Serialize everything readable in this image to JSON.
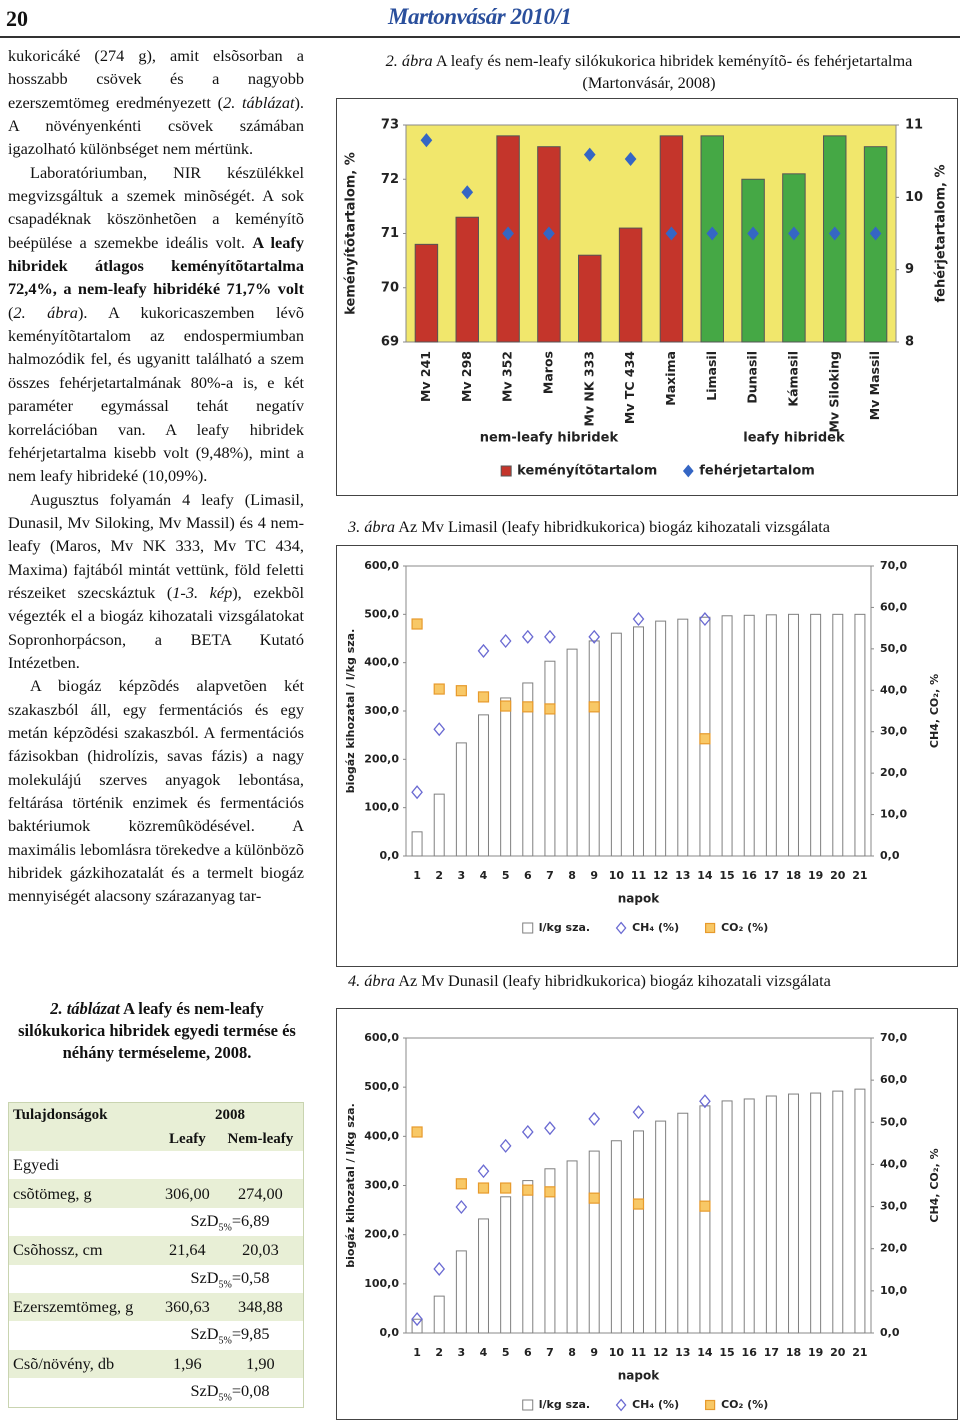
{
  "header": {
    "page_number": "20",
    "journal": "Martonvásár 2010/1"
  },
  "body": {
    "paragraphs": [
      [
        "kukoricáké (274 g), amit elsõsorban a hosszabb csövek és a nagyobb ezerszemtömeg eredményezett (",
        "2. táblázat",
        "). A növényenkénti csövek számában igazolható különbséget nem mértünk."
      ],
      [
        "Laboratóriumban, NIR készülékkel megvizsgáltuk a szemek minõségét. A sok csapadéknak köszönhetõen a keményítõ beépülése a szemekbe ideális volt. ",
        "A leafy hibridek átlagos keményítõtartalma 72,4%, a nem-leafy hibridéké 71,7% volt",
        " (",
        "2. ábra",
        "). A kukoricaszemben lévõ keményítõtartalom az endospermiumban halmozódik fel, és ugyanitt található a szem összes fehérjetartalmának 80%-a is, e két paraméter egymással tehát negatív korrelációban van. A leafy hibridek fehérjetartalma kisebb volt (9,48%), mint a nem leafy hibrideké (10,09%)."
      ],
      [
        "Augusztus folyamán 4 leafy (Limasil, Dunasil, Mv Siloking, Mv Massil) és 4 nem-leafy (Maros, Mv NK 333, Mv TC 434, Maxima) fajtából mintát vettünk, föld feletti részeiket szecskáztuk (",
        "1-3. kép",
        "), ezekbõl végezték el a biogáz kihozatali vizsgálatokat Sopronhorpácson, a BETA Kutató Intézetben."
      ],
      [
        "A biogáz képzõdés alapvetõen két szakaszból áll, egy fermentációs és egy metán képzõdési szakaszból. A fermentációs fázisokban (hidrolízis, savas fázis) a nagy molekulájú szerves anyagok lebontása, feltárása történik enzimek és fermentációs baktériumok közremûködésével. A maximális lebomlásra törekedve a különbözõ hibridek gázkihozatalát és a termelt biogáz mennyiségét alacsony szárazanyag tar-"
      ]
    ]
  },
  "table": {
    "caption": [
      "2. táblázat",
      " A leafy és nem-leafy silókukorica hibridek egyedi termése és néhány terméseleme, 2008."
    ],
    "header": [
      "Tulajdonságok",
      "2008"
    ],
    "subheader": [
      "Leafy",
      "Nem-leafy"
    ],
    "rows": [
      [
        "Egyedi"
      ],
      [
        "csõtömeg, g",
        "306,00",
        "274,00"
      ],
      [
        [
          "SzD",
          "5%",
          "=6,89"
        ]
      ],
      [
        "Csõhossz, cm",
        "21,64",
        "20,03"
      ],
      [
        [
          "SzD",
          "5%",
          "=0,58"
        ]
      ],
      [
        "Ezerszemtömeg, g",
        "360,63",
        "348,88"
      ],
      [
        [
          "SzD",
          "5%",
          "=9,85"
        ]
      ],
      [
        "Csõ/növény, db",
        "1,96",
        "1,90"
      ],
      [
        [
          "SzD",
          "5%",
          "=0,08"
        ]
      ]
    ]
  },
  "chart_data": [
    {
      "type": "combo",
      "caption_label": "2. ábra",
      "title": "A leafy és nem-leafy silókukorica hibridek keményítõ- és fehérjetartalma (Martonvásár, 2008)",
      "categories": [
        "Mv 241",
        "Mv 298",
        "Mv 352",
        "Maros",
        "Mv NK 333",
        "Mv TC 434",
        "Maxima",
        "Limasil",
        "Dunasil",
        "Kámasil",
        "Mv Siloking",
        "Mv Massil"
      ],
      "groups": [
        {
          "name": "nem-leafy hibridek",
          "categories": [
            "Mv 241",
            "Mv 298",
            "Mv 352",
            "Maros",
            "Mv NK 333",
            "Mv TC 434",
            "Maxima"
          ]
        },
        {
          "name": "leafy hibridek",
          "categories": [
            "Limasil",
            "Dunasil",
            "Kámasil",
            "Mv Siloking",
            "Mv Massil"
          ]
        }
      ],
      "ylabel": "keményítõtartalom, %",
      "y2label": "fehérjetartalom, %",
      "ylim": [
        69,
        73
      ],
      "yticks": [
        69,
        70,
        71,
        72,
        73
      ],
      "y2lim": [
        8,
        11
      ],
      "y2ticks": [
        8,
        9,
        10,
        11
      ],
      "background": "#f1e76c",
      "grid": false,
      "series": [
        {
          "name": "keményítõtartalom",
          "kind": "bar",
          "color": "#c4352b",
          "colors": [
            "#c4352b",
            "#c4352b",
            "#c4352b",
            "#c4352b",
            "#c4352b",
            "#c4352b",
            "#c4352b",
            "#45a845",
            "#45a845",
            "#45a845",
            "#45a845",
            "#45a845"
          ],
          "values": [
            70.8,
            71.3,
            72.8,
            72.6,
            70.6,
            71.1,
            72.8,
            72.8,
            72.0,
            72.1,
            72.8,
            72.6
          ]
        },
        {
          "name": "fehérjetartalom",
          "kind": "scatter",
          "marker": "diamond",
          "color": "#3566c4",
          "fill": "#3566c4",
          "axis": "y2",
          "values": [
            10.79,
            10.07,
            9.5,
            9.5,
            10.59,
            10.53,
            9.5,
            9.5,
            9.5,
            9.5,
            9.5,
            9.5
          ]
        }
      ]
    },
    {
      "type": "combo",
      "caption_label": "3. ábra",
      "title": "Az Mv Limasil (leafy hibridkukorica) biogáz kihozatali vizsgálata",
      "x": [
        1,
        2,
        3,
        4,
        5,
        6,
        7,
        8,
        9,
        10,
        11,
        12,
        13,
        14,
        15,
        16,
        17,
        18,
        19,
        20,
        21
      ],
      "xlabel": "napok",
      "ylabel": "biogáz kihozatal / l/kg sza.",
      "y2label": "CH4, CO₂, %",
      "ylim": [
        0,
        600
      ],
      "yticks": [
        {
          "value": 0,
          "label": "0,0"
        },
        {
          "value": 100,
          "label": "100,0"
        },
        {
          "value": 200,
          "label": "200,0"
        },
        {
          "value": 300,
          "label": "300,0"
        },
        {
          "value": 400,
          "label": "400,0"
        },
        {
          "value": 500,
          "label": "500,0"
        },
        {
          "value": 600,
          "label": "600,0"
        }
      ],
      "y2lim": [
        0,
        70
      ],
      "y2ticks": [
        {
          "value": 0,
          "label": "0,0"
        },
        {
          "value": 10,
          "label": "10,0"
        },
        {
          "value": 20,
          "label": "20,0"
        },
        {
          "value": 30,
          "label": "30,0"
        },
        {
          "value": 40,
          "label": "40,0"
        },
        {
          "value": 50,
          "label": "50,0"
        },
        {
          "value": 60,
          "label": "60,0"
        },
        {
          "value": 70,
          "label": "70,0"
        }
      ],
      "background": "#ffffff",
      "grid": false,
      "series": [
        {
          "name": "l/kg sza.",
          "kind": "bar",
          "color": "#ffffff",
          "stroke": "#7f7f7f",
          "values": [
            50,
            128,
            234,
            292,
            327,
            358,
            403,
            428,
            445,
            461,
            474,
            486,
            490,
            494,
            497,
            498,
            499,
            500,
            500,
            500,
            500
          ]
        },
        {
          "name": "CH₄ (%)",
          "kind": "scatter",
          "marker": "diamond",
          "color": "#6a6ad2",
          "fill": "none",
          "axis": "y2",
          "values": [
            15.4,
            30.6,
            null,
            49.5,
            51.9,
            52.9,
            52.9,
            null,
            52.9,
            null,
            57.2,
            null,
            null,
            57.2,
            null,
            null,
            null,
            null,
            null,
            null,
            null
          ]
        },
        {
          "name": "CO₂ (%)",
          "kind": "scatter",
          "marker": "square",
          "color": "#e79a2c",
          "fill": "#f8c866",
          "axis": "y2",
          "values": [
            56.0,
            40.3,
            39.9,
            38.4,
            36.2,
            36.0,
            35.5,
            null,
            36.0,
            null,
            null,
            null,
            null,
            28.3,
            null,
            null,
            null,
            null,
            null,
            null,
            null
          ]
        }
      ]
    },
    {
      "type": "combo",
      "caption_label": "4. ábra",
      "title": "Az Mv Dunasil (leafy hibridkukorica) biogáz kihozatali vizsgálata",
      "x": [
        1,
        2,
        3,
        4,
        5,
        6,
        7,
        8,
        9,
        10,
        11,
        12,
        13,
        14,
        15,
        16,
        17,
        18,
        19,
        20,
        21
      ],
      "xlabel": "napok",
      "ylabel": "biogáz kihozatal / l/kg sza.",
      "y2label": "CH4, CO₂, %",
      "ylim": [
        0,
        600
      ],
      "yticks": [
        {
          "value": 0,
          "label": "0,0"
        },
        {
          "value": 100,
          "label": "100,0"
        },
        {
          "value": 200,
          "label": "200,0"
        },
        {
          "value": 300,
          "label": "300,0"
        },
        {
          "value": 400,
          "label": "400,0"
        },
        {
          "value": 500,
          "label": "500,0"
        },
        {
          "value": 600,
          "label": "600,0"
        }
      ],
      "y2lim": [
        0,
        70
      ],
      "y2ticks": [
        {
          "value": 0,
          "label": "0,0"
        },
        {
          "value": 10,
          "label": "10,0"
        },
        {
          "value": 20,
          "label": "20,0"
        },
        {
          "value": 30,
          "label": "30,0"
        },
        {
          "value": 40,
          "label": "40,0"
        },
        {
          "value": 50,
          "label": "50,0"
        },
        {
          "value": 60,
          "label": "60,0"
        },
        {
          "value": 70,
          "label": "70,0"
        }
      ],
      "background": "#ffffff",
      "grid": false,
      "series": [
        {
          "name": "l/kg sza.",
          "kind": "bar",
          "color": "#ffffff",
          "stroke": "#7f7f7f",
          "values": [
            28,
            75,
            167,
            232,
            277,
            310,
            334,
            350,
            370,
            391,
            411,
            431,
            447,
            462,
            472,
            476,
            482,
            486,
            488,
            492,
            496
          ]
        },
        {
          "name": "CH₄ (%)",
          "kind": "scatter",
          "marker": "diamond",
          "color": "#6a6ad2",
          "fill": "none",
          "axis": "y2",
          "values": [
            3.3,
            15.2,
            29.9,
            38.4,
            44.4,
            47.7,
            48.6,
            null,
            50.8,
            null,
            52.4,
            null,
            null,
            55.0,
            null,
            null,
            null,
            null,
            null,
            null,
            null
          ]
        },
        {
          "name": "CO₂ (%)",
          "kind": "scatter",
          "marker": "square",
          "color": "#e79a2c",
          "fill": "#f8c866",
          "axis": "y2",
          "values": [
            47.7,
            null,
            35.4,
            34.4,
            34.4,
            33.9,
            33.5,
            null,
            32.0,
            null,
            30.6,
            null,
            null,
            30.1,
            null,
            null,
            null,
            null,
            null,
            null,
            null
          ]
        }
      ]
    }
  ]
}
